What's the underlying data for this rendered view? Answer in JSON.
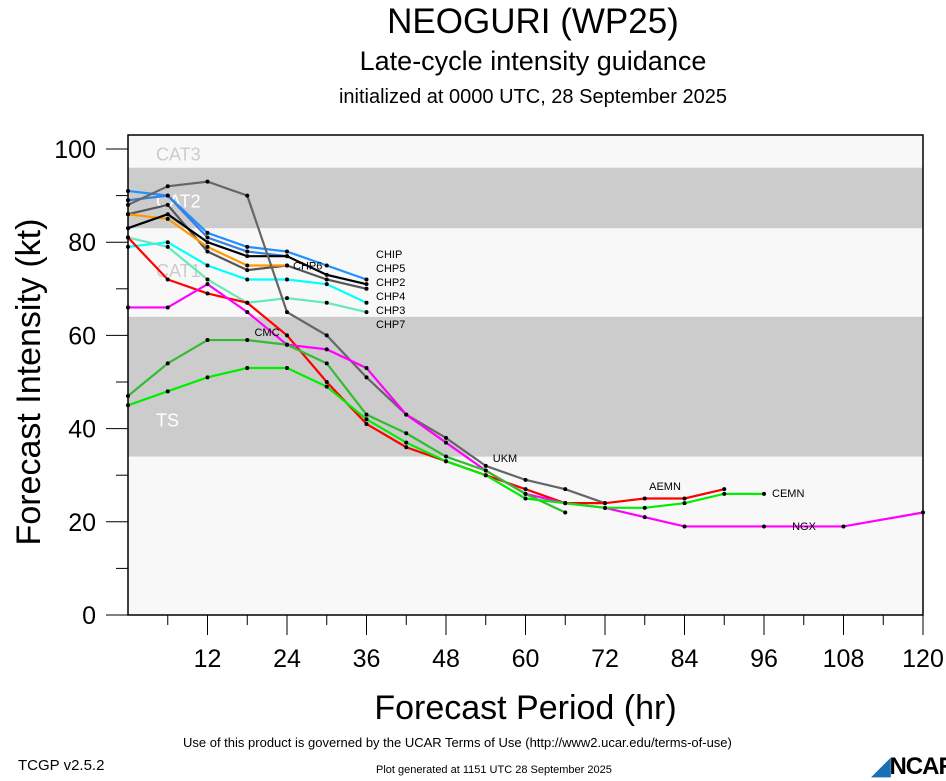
{
  "header": {
    "title": "NEOGURI (WP25)",
    "subtitle": "Late-cycle intensity guidance",
    "init": "initialized at 0000 UTC, 28 September 2025"
  },
  "footer": {
    "terms": "Use of this product is governed by the UCAR Terms of Use (http://www2.ucar.edu/terms-of-use)",
    "generated": "Plot generated at 1151 UTC   28 September 2025",
    "version": "TCGP v2.5.2",
    "logo": "NCAR"
  },
  "chart_data": {
    "type": "line",
    "xlabel": "Forecast Period (hr)",
    "ylabel": "Forecast Intensity (kt)",
    "xlim": [
      0,
      120
    ],
    "ylim": [
      0,
      100
    ],
    "xticks": [
      12,
      24,
      36,
      48,
      60,
      72,
      84,
      96,
      108,
      120
    ],
    "yticks": [
      0,
      20,
      40,
      60,
      80,
      100
    ],
    "bands": [
      {
        "label": "TS",
        "from": 34,
        "to": 64,
        "color": "#cccccc"
      },
      {
        "label": "CAT1",
        "from": 64,
        "to": 83,
        "color": "#f8f8f8"
      },
      {
        "label": "CAT2",
        "from": 83,
        "to": 96,
        "color": "#cccccc"
      },
      {
        "label": "CAT3",
        "from": 96,
        "to": 113,
        "color": "#f8f8f8"
      }
    ],
    "series": [
      {
        "name": "CHIP",
        "color": "#1e90ff",
        "x": [
          0,
          6,
          12,
          18,
          24,
          30,
          36
        ],
        "y": [
          91,
          90,
          82,
          79,
          78,
          75,
          72
        ]
      },
      {
        "name": "CHP5",
        "color": "#3a7ee0",
        "x": [
          0,
          6,
          12,
          18,
          24
        ],
        "y": [
          89,
          90,
          81,
          78,
          77
        ]
      },
      {
        "name": "CHP4",
        "color": "#555555",
        "x": [
          0,
          6,
          12,
          18,
          24,
          30,
          36
        ],
        "y": [
          86,
          88,
          78,
          74,
          75,
          72,
          70
        ]
      },
      {
        "name": "CHP6",
        "color": "#ff9900",
        "x": [
          0,
          6,
          12,
          18,
          24
        ],
        "y": [
          86,
          85,
          79,
          75,
          75
        ]
      },
      {
        "name": "CHP2",
        "color": "#000000",
        "x": [
          0,
          6,
          12,
          18,
          24,
          30,
          36
        ],
        "y": [
          83,
          86,
          80,
          77,
          77,
          73,
          71
        ]
      },
      {
        "name": "CHP3",
        "color": "#00ffff",
        "x": [
          0,
          6,
          12,
          18,
          24,
          30,
          36
        ],
        "y": [
          79,
          80,
          75,
          72,
          72,
          71,
          67
        ]
      },
      {
        "name": "CHP7",
        "color": "#66e8b8",
        "x": [
          0,
          6,
          12,
          18,
          24,
          30,
          36
        ],
        "y": [
          81,
          79,
          72,
          67,
          68,
          67,
          65
        ]
      },
      {
        "name": "UKM",
        "color": "#666666",
        "x": [
          0,
          6,
          12,
          18,
          24,
          30,
          36,
          42,
          48,
          54,
          60,
          66,
          72
        ],
        "y": [
          88,
          92,
          93,
          90,
          65,
          60,
          51,
          43,
          38,
          32,
          29,
          27,
          24
        ]
      },
      {
        "name": "AEMN",
        "color": "#ff0000",
        "x": [
          0,
          6,
          12,
          18,
          24,
          30,
          36,
          42,
          48,
          54,
          60,
          66,
          72,
          78,
          84,
          90
        ],
        "y": [
          81,
          72,
          69,
          67,
          60,
          50,
          41,
          36,
          33,
          30,
          27,
          24,
          24,
          25,
          25,
          27
        ]
      },
      {
        "name": "NGX",
        "color": "#ff00ff",
        "x": [
          0,
          6,
          12,
          18,
          24,
          30,
          36,
          42,
          48,
          54,
          60,
          66,
          72,
          78,
          84,
          96,
          108,
          120
        ],
        "y": [
          66,
          66,
          71,
          65,
          58,
          57,
          53,
          43,
          37,
          31,
          26,
          24,
          23,
          21,
          19,
          19,
          19,
          22
        ]
      },
      {
        "name": "CMC",
        "color": "#33bb33",
        "x": [
          0,
          6,
          12,
          18,
          24,
          30,
          36,
          42,
          48,
          54,
          60,
          66
        ],
        "y": [
          47,
          54,
          59,
          59,
          58,
          54,
          43,
          39,
          34,
          31,
          26,
          22
        ]
      },
      {
        "name": "CEMN",
        "color": "#00ee00",
        "x": [
          0,
          6,
          12,
          18,
          24,
          30,
          36,
          42,
          48,
          54,
          60,
          66,
          72,
          78,
          84,
          90,
          96
        ],
        "y": [
          45,
          48,
          51,
          53,
          53,
          49,
          42,
          37,
          33,
          30,
          25,
          24,
          23,
          23,
          24,
          26,
          26
        ]
      }
    ]
  }
}
